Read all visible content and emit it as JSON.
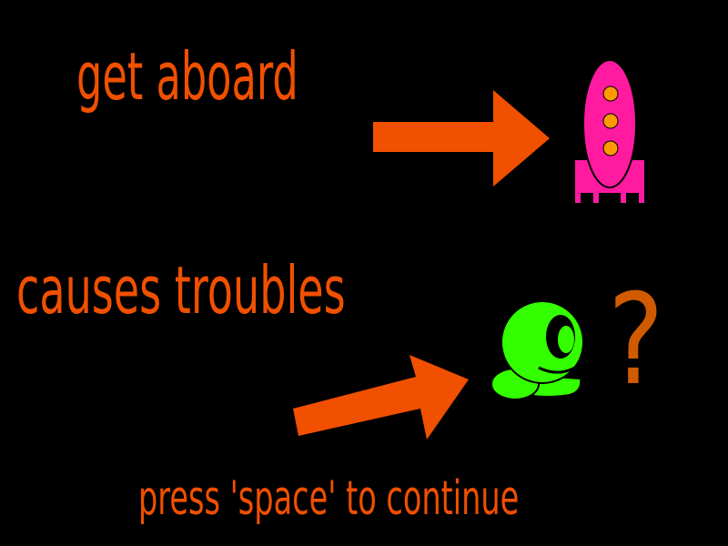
{
  "screen": {
    "background": "#000000"
  },
  "tutorial": {
    "line1": "get aboard",
    "line2": "causes troubles",
    "prompt": "press 'space' to continue",
    "question_mark": "?"
  },
  "icons": {
    "rocket": "rocket-icon",
    "alien": "alien-blob-icon",
    "arrow": "arrow-icon"
  },
  "colors": {
    "text": "#f05000",
    "arrow": "#f05000",
    "question": "#d05a00",
    "rocket_body": "#ff1aa0",
    "rocket_windows": "#ff9900",
    "alien_body": "#33ff00"
  }
}
